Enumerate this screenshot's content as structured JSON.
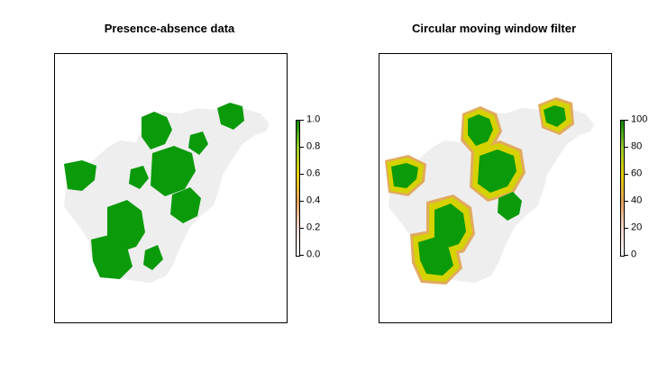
{
  "panels": [
    {
      "title": "Presence-absence data",
      "legend": {
        "ticks": [
          "1.0",
          "0.8",
          "0.6",
          "0.4",
          "0.2",
          "0.0"
        ],
        "range": [
          0,
          1
        ]
      }
    },
    {
      "title": "Circular moving window filter",
      "legend": {
        "ticks": [
          "100",
          "80",
          "60",
          "40",
          "20",
          "0"
        ],
        "range": [
          0,
          100
        ]
      }
    }
  ],
  "colors": {
    "background_region": "#eeeeee",
    "presence": "#0a9a0a",
    "transition_high": "#d6d200",
    "transition_mid": "#e1aa5f",
    "transition_low": "#f4dcd8",
    "absence": "#ffffff"
  },
  "ramp_stops": [
    "#0a8a00",
    "#9acd32",
    "#e6d200",
    "#e7a260",
    "#f3d6cf",
    "#ffffff"
  ]
}
